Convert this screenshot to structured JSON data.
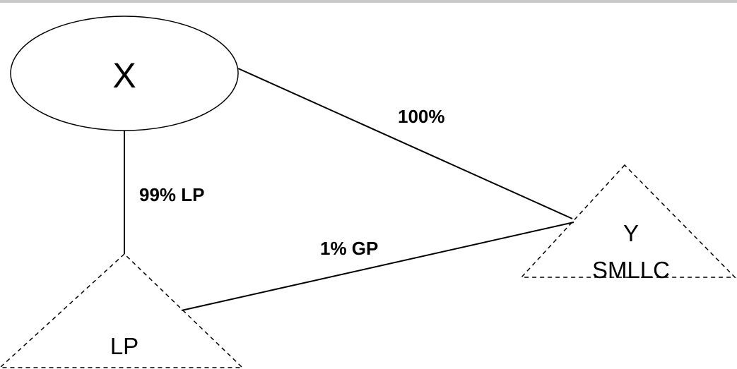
{
  "diagram": {
    "nodes": {
      "x": {
        "label": "X",
        "shape": "ellipse"
      },
      "lp": {
        "label": "LP",
        "shape": "triangle-dashed"
      },
      "y": {
        "label_line1": "Y",
        "label_line2": "SMLLC",
        "shape": "triangle-dashed"
      }
    },
    "edges": {
      "x_to_lp": {
        "label": "99% LP"
      },
      "x_to_y": {
        "label": "100%"
      },
      "lp_to_y": {
        "label": "1% GP"
      }
    },
    "colors": {
      "stroke": "#000000",
      "background": "#ffffff",
      "top_rule": "#c8c8c8"
    }
  }
}
